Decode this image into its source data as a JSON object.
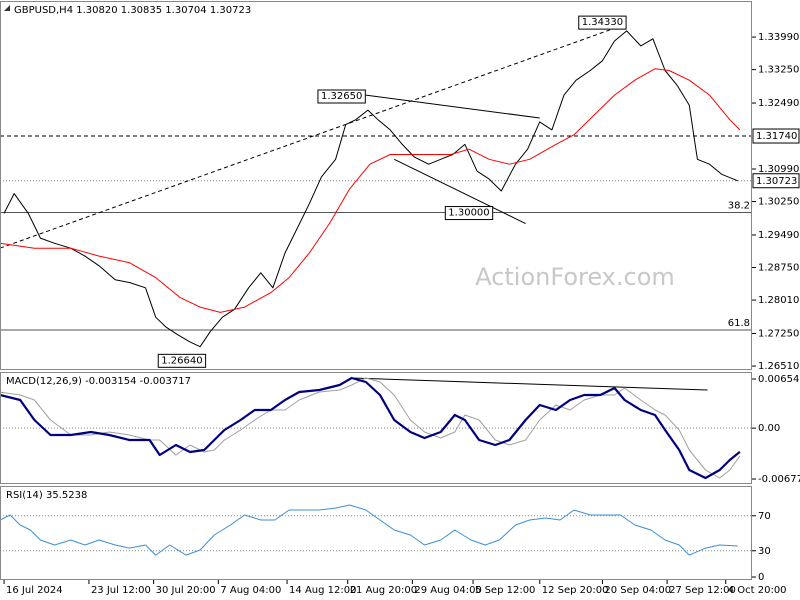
{
  "chart_data": [
    {
      "type": "line",
      "title": "GBPUSD,H4  1.30820 1.30835 1.30704 1.30723",
      "xlim": [
        -2,
        370
      ],
      "ylim": [
        1.2642,
        1.3481
      ],
      "yticks": [
        {
          "value": 1.3399,
          "label": "1.33990"
        },
        {
          "value": 1.3325,
          "label": "1.33250"
        },
        {
          "value": 1.3249,
          "label": "1.32490"
        },
        {
          "value": 1.3099,
          "label": "1.30990"
        },
        {
          "value": 1.3025,
          "label": "1.30250"
        },
        {
          "value": 1.2949,
          "label": "1.29490"
        },
        {
          "value": 1.2875,
          "label": "1.28750"
        },
        {
          "value": 1.2801,
          "label": "1.28010"
        },
        {
          "value": 1.2725,
          "label": "1.27250"
        },
        {
          "value": 1.2651,
          "label": "1.26510"
        }
      ],
      "series": [
        {
          "color": "#000000",
          "width": 1,
          "x": [
            0,
            5,
            12,
            18,
            25,
            33,
            40,
            47,
            55,
            62,
            70,
            75,
            80,
            86,
            92,
            97,
            102,
            108,
            114,
            121,
            127,
            133,
            139,
            145,
            151,
            157,
            164,
            169,
            174,
            180,
            185,
            191,
            197,
            203,
            210,
            216,
            222,
            228,
            234,
            240,
            246,
            253,
            259,
            265,
            271,
            277,
            283,
            290,
            296,
            302,
            308,
            315,
            321,
            327,
            333,
            339,
            343,
            349,
            355,
            363
          ],
          "values": [
            1.2998,
            1.3043,
            1.2998,
            1.2942,
            1.293,
            1.2919,
            1.2901,
            1.2879,
            1.2847,
            1.2841,
            1.2829,
            1.2762,
            1.274,
            1.2722,
            1.2706,
            1.2695,
            1.2729,
            1.2762,
            1.278,
            1.2829,
            1.2863,
            1.2829,
            1.2908,
            1.2964,
            1.302,
            1.3081,
            1.3121,
            1.32,
            1.3211,
            1.3233,
            1.3211,
            1.3188,
            1.3155,
            1.3126,
            1.311,
            1.3121,
            1.3132,
            1.3155,
            1.3094,
            1.3076,
            1.3049,
            1.311,
            1.3144,
            1.3206,
            1.3188,
            1.3267,
            1.3301,
            1.3323,
            1.3345,
            1.339,
            1.3413,
            1.3379,
            1.3395,
            1.3323,
            1.3289,
            1.3244,
            1.3121,
            1.311,
            1.3087,
            1.30723
          ]
        },
        {
          "color": "#ff0000",
          "width": 1,
          "x": [
            -2,
            15,
            33,
            47,
            62,
            75,
            87,
            97,
            107,
            119,
            132,
            141,
            151,
            161,
            171,
            181,
            191,
            206,
            221,
            230,
            240,
            250,
            260,
            273,
            282,
            292,
            302,
            312,
            322,
            329,
            339,
            349,
            359,
            364
          ],
          "values": [
            1.293,
            1.2919,
            1.2919,
            1.2901,
            1.2886,
            1.2852,
            1.2807,
            1.2785,
            1.2773,
            1.2785,
            1.2818,
            1.2852,
            1.2908,
            1.2975,
            1.3054,
            1.311,
            1.3132,
            1.3132,
            1.3132,
            1.3144,
            1.3121,
            1.311,
            1.3121,
            1.3155,
            1.3177,
            1.3222,
            1.3267,
            1.3301,
            1.3327,
            1.3323,
            1.3301,
            1.3267,
            1.3211,
            1.3188
          ]
        }
      ],
      "levels": [
        {
          "value": 1.3174,
          "label": "1.31740",
          "style": "dashed"
        },
        {
          "value": 1.30723,
          "label": "1.30723",
          "style": "dotted"
        },
        {
          "value": 1.3,
          "fib": 38.2,
          "style": "solid"
        },
        {
          "value": 1.2733,
          "fib": 61.8,
          "style": "solid"
        }
      ],
      "trendlines": [
        {
          "x": [
            -2,
            305
          ],
          "y": [
            1.2919,
            1.3424
          ],
          "style": "dashed"
        },
        {
          "x": [
            179,
            265
          ],
          "y": [
            1.3267,
            1.3215
          ],
          "style": "solid"
        },
        {
          "x": [
            193,
            258
          ],
          "y": [
            1.3121,
            1.2975
          ],
          "style": "solid"
        }
      ],
      "annotations": [
        {
          "x": 167,
          "y": 1.3265,
          "label": "1.32650"
        },
        {
          "x": 296,
          "y": 1.3433,
          "label": "1.34330"
        },
        {
          "x": 230,
          "y": 1.3,
          "label": "1.30000"
        },
        {
          "x": 88,
          "y": 1.2664,
          "label": "1.26640"
        }
      ],
      "watermark": "ActionForex.com"
    },
    {
      "type": "line",
      "title": "MACD(12,26,9) -0.003154 -0.003717",
      "xlim": [
        -2,
        370
      ],
      "ylim": [
        -0.00744,
        0.00748
      ],
      "yticks": [
        0.006549,
        {
          "value": 0,
          "label": "0.00"
        },
        -0.006778
      ],
      "series": [
        {
          "color": "#a0a0a0",
          "width": 1,
          "x": [
            -2,
            8,
            15,
            23,
            33,
            43,
            52,
            62,
            72,
            77,
            85,
            92,
            99,
            104,
            109,
            117,
            124,
            132,
            139,
            146,
            156,
            166,
            172,
            179,
            186,
            193,
            201,
            208,
            216,
            223,
            228,
            235,
            243,
            250,
            258,
            265,
            273,
            280,
            287,
            295,
            302,
            307,
            315,
            322,
            327,
            334,
            339,
            347,
            354,
            359,
            364
          ],
          "values": [
            0.0048,
            0.00442,
            0.00375,
            0.00109,
            -0.00091,
            -0.00091,
            -0.00051,
            -0.00091,
            -0.00158,
            -0.00158,
            -0.00358,
            -0.00224,
            -0.00318,
            -0.00291,
            -0.00158,
            -0.00025,
            0.00109,
            0.00242,
            0.00242,
            0.00375,
            0.00482,
            0.00508,
            0.00575,
            0.00668,
            0.00615,
            0.00442,
            0.00109,
            -0.00051,
            -0.00131,
            -0.00051,
            0.00175,
            0.00109,
            -0.00158,
            -0.00224,
            -0.00158,
            0.00109,
            0.00308,
            0.00242,
            0.00375,
            0.00442,
            0.00442,
            0.00535,
            0.00375,
            0.00242,
            0.00175,
            -0.00025,
            -0.00291,
            -0.00557,
            -0.00664,
            -0.00557,
            -0.00372
          ]
        },
        {
          "color": "#000080",
          "width": 2.2,
          "x": [
            -2,
            8,
            15,
            23,
            33,
            43,
            52,
            62,
            72,
            77,
            85,
            92,
            99,
            104,
            109,
            117,
            124,
            132,
            139,
            146,
            156,
            166,
            172,
            179,
            186,
            193,
            201,
            208,
            216,
            223,
            228,
            235,
            243,
            250,
            258,
            265,
            273,
            280,
            287,
            295,
            302,
            307,
            315,
            322,
            327,
            334,
            339,
            347,
            354,
            359,
            364
          ],
          "values": [
            0.00442,
            0.00375,
            0.00109,
            -0.00091,
            -0.00091,
            -0.00051,
            -0.00091,
            -0.00158,
            -0.00158,
            -0.00358,
            -0.00224,
            -0.00318,
            -0.00291,
            -0.00158,
            -0.00025,
            0.00109,
            0.00242,
            0.00242,
            0.00375,
            0.00482,
            0.00508,
            0.00575,
            0.00668,
            0.00615,
            0.00442,
            0.00109,
            -0.00051,
            -0.00131,
            -0.00051,
            0.00175,
            0.00109,
            -0.00158,
            -0.00224,
            -0.00158,
            0.00109,
            0.00308,
            0.00242,
            0.00375,
            0.00442,
            0.00442,
            0.00535,
            0.00375,
            0.00242,
            0.00175,
            -0.00025,
            -0.00291,
            -0.00557,
            -0.00664,
            -0.00557,
            -0.00424,
            -0.00315
          ]
        }
      ],
      "levels": [
        {
          "value": 0,
          "style": "dotted"
        }
      ],
      "trendlines": [
        {
          "x": [
            172,
            348
          ],
          "y": [
            0.00668,
            0.00508
          ],
          "style": "solid"
        }
      ]
    },
    {
      "type": "line",
      "title": "RSI(14) 35.5238",
      "xlim": [
        -2,
        370
      ],
      "ylim": [
        -3.4,
        104
      ],
      "yticks": [
        70,
        30,
        0
      ],
      "xticks": [
        {
          "value": 0,
          "label": "16 Jul 2024"
        },
        {
          "value": 42,
          "label": "23 Jul 12:00"
        },
        {
          "value": 74,
          "label": "30 Jul 20:00"
        },
        {
          "value": 106,
          "label": "7 Aug 04:00"
        },
        {
          "value": 140,
          "label": "14 Aug 12:00"
        },
        {
          "value": 170,
          "label": "21 Aug 20:00"
        },
        {
          "value": 202,
          "label": "29 Aug 04:00"
        },
        {
          "value": 232,
          "label": "5 Sep 12:00"
        },
        {
          "value": 265,
          "label": "12 Sep 20:00"
        },
        {
          "value": 296,
          "label": "20 Sep 04:00"
        },
        {
          "value": 328,
          "label": "27 Sep 12:00"
        },
        {
          "value": 357,
          "label": "4 Oct 20:00"
        }
      ],
      "series": [
        {
          "color": "#3d8fd6",
          "width": 1,
          "x": [
            -2,
            3,
            8,
            13,
            18,
            25,
            33,
            40,
            47,
            55,
            62,
            70,
            75,
            82,
            90,
            97,
            104,
            112,
            119,
            127,
            134,
            141,
            149,
            156,
            164,
            171,
            179,
            186,
            193,
            201,
            208,
            216,
            223,
            231,
            238,
            245,
            253,
            260,
            268,
            275,
            282,
            290,
            297,
            305,
            312,
            320,
            327,
            334,
            339,
            347,
            354,
            363
          ],
          "values": [
            65.1,
            70.9,
            59.4,
            53.7,
            42.3,
            36.6,
            42.3,
            36.6,
            42.3,
            36.6,
            33.1,
            36.6,
            25.1,
            36.6,
            25.1,
            30.9,
            48.0,
            59.4,
            70.9,
            65.1,
            65.1,
            76.6,
            76.6,
            76.6,
            78.9,
            82.3,
            76.6,
            65.1,
            53.7,
            48.0,
            36.6,
            42.3,
            53.7,
            42.3,
            36.6,
            42.3,
            59.4,
            65.1,
            67.4,
            65.1,
            76.6,
            70.9,
            70.9,
            70.9,
            59.4,
            53.7,
            42.3,
            36.6,
            25.1,
            33.1,
            36.6,
            35.5
          ]
        }
      ],
      "levels": [
        {
          "value": 70,
          "style": "dotted"
        },
        {
          "value": 30,
          "style": "dotted"
        }
      ]
    }
  ]
}
